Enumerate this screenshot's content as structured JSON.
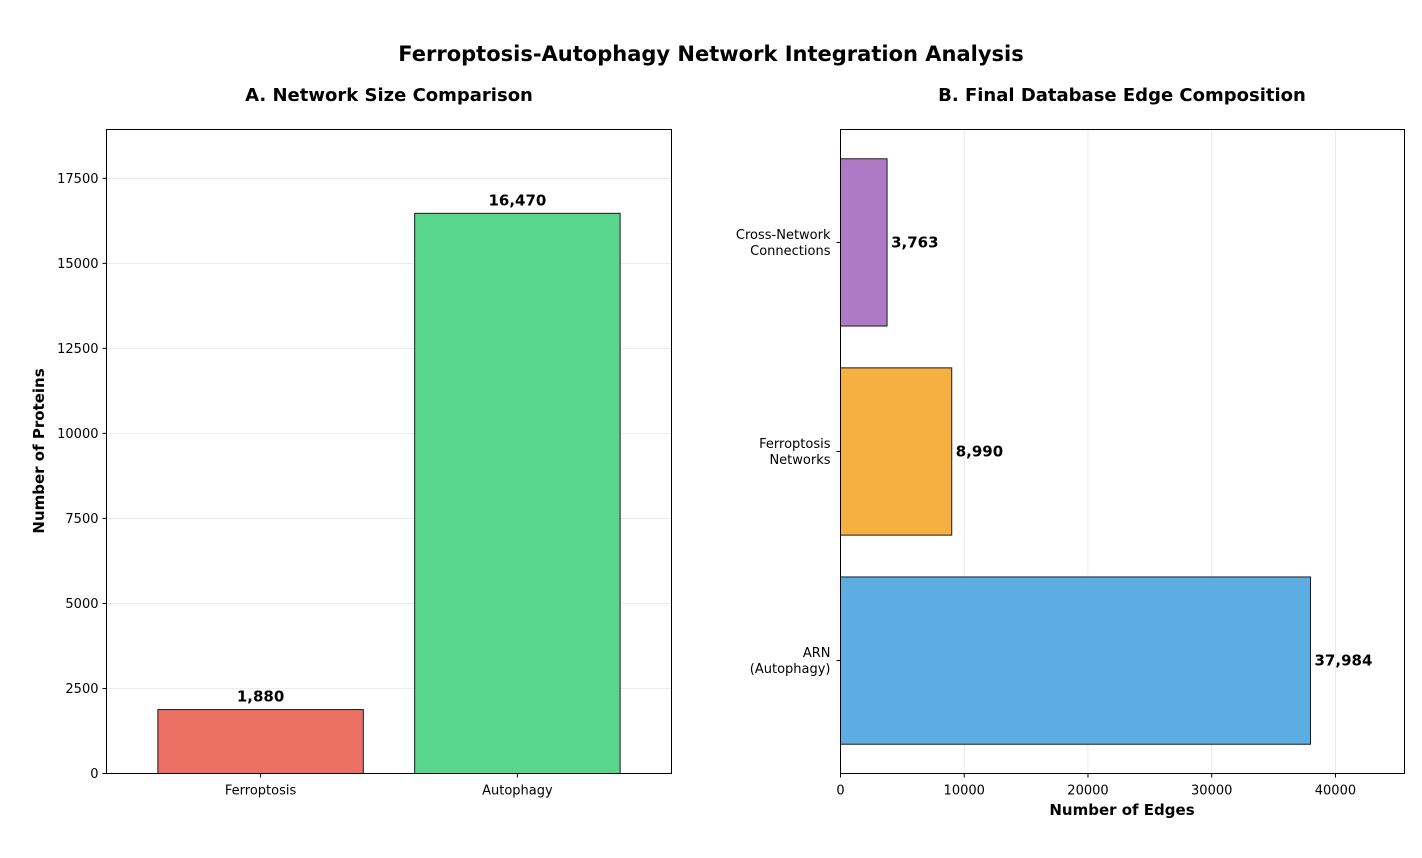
{
  "figure": {
    "title": "Ferroptosis-Autophagy Network Integration Analysis"
  },
  "chart_data": [
    {
      "type": "bar",
      "orientation": "vertical",
      "title": "A. Network Size Comparison",
      "xlabel": "",
      "ylabel": "Number of Proteins",
      "categories": [
        "Ferroptosis",
        "Autophagy"
      ],
      "values": [
        1880,
        16470
      ],
      "value_labels": [
        "1,880",
        "16,470"
      ],
      "colors": [
        "#ec7063",
        "#58d68d"
      ],
      "ylim": [
        0,
        18935
      ],
      "yticks": [
        0,
        2500,
        5000,
        7500,
        10000,
        12500,
        15000,
        17500
      ],
      "ytick_labels": [
        "0",
        "2500",
        "5000",
        "7500",
        "10000",
        "12500",
        "15000",
        "17500"
      ],
      "grid": true
    },
    {
      "type": "bar",
      "orientation": "horizontal",
      "title": "B. Final Database Edge Composition",
      "xlabel": "Number of Edges",
      "ylabel": "",
      "categories": [
        [
          "ARN",
          "(Autophagy)"
        ],
        [
          "Ferroptosis",
          "Networks"
        ],
        [
          "Cross-Network",
          "Connections"
        ]
      ],
      "values": [
        37984,
        8990,
        3763
      ],
      "value_labels": [
        "37,984",
        "8,990",
        "3,763"
      ],
      "colors": [
        "#5dade2",
        "#f5b041",
        "#af7ac5"
      ],
      "xlim": [
        0,
        45580
      ],
      "xticks": [
        0,
        10000,
        20000,
        30000,
        40000
      ],
      "xtick_labels": [
        "0",
        "10000",
        "20000",
        "30000",
        "40000"
      ],
      "grid": true
    }
  ]
}
